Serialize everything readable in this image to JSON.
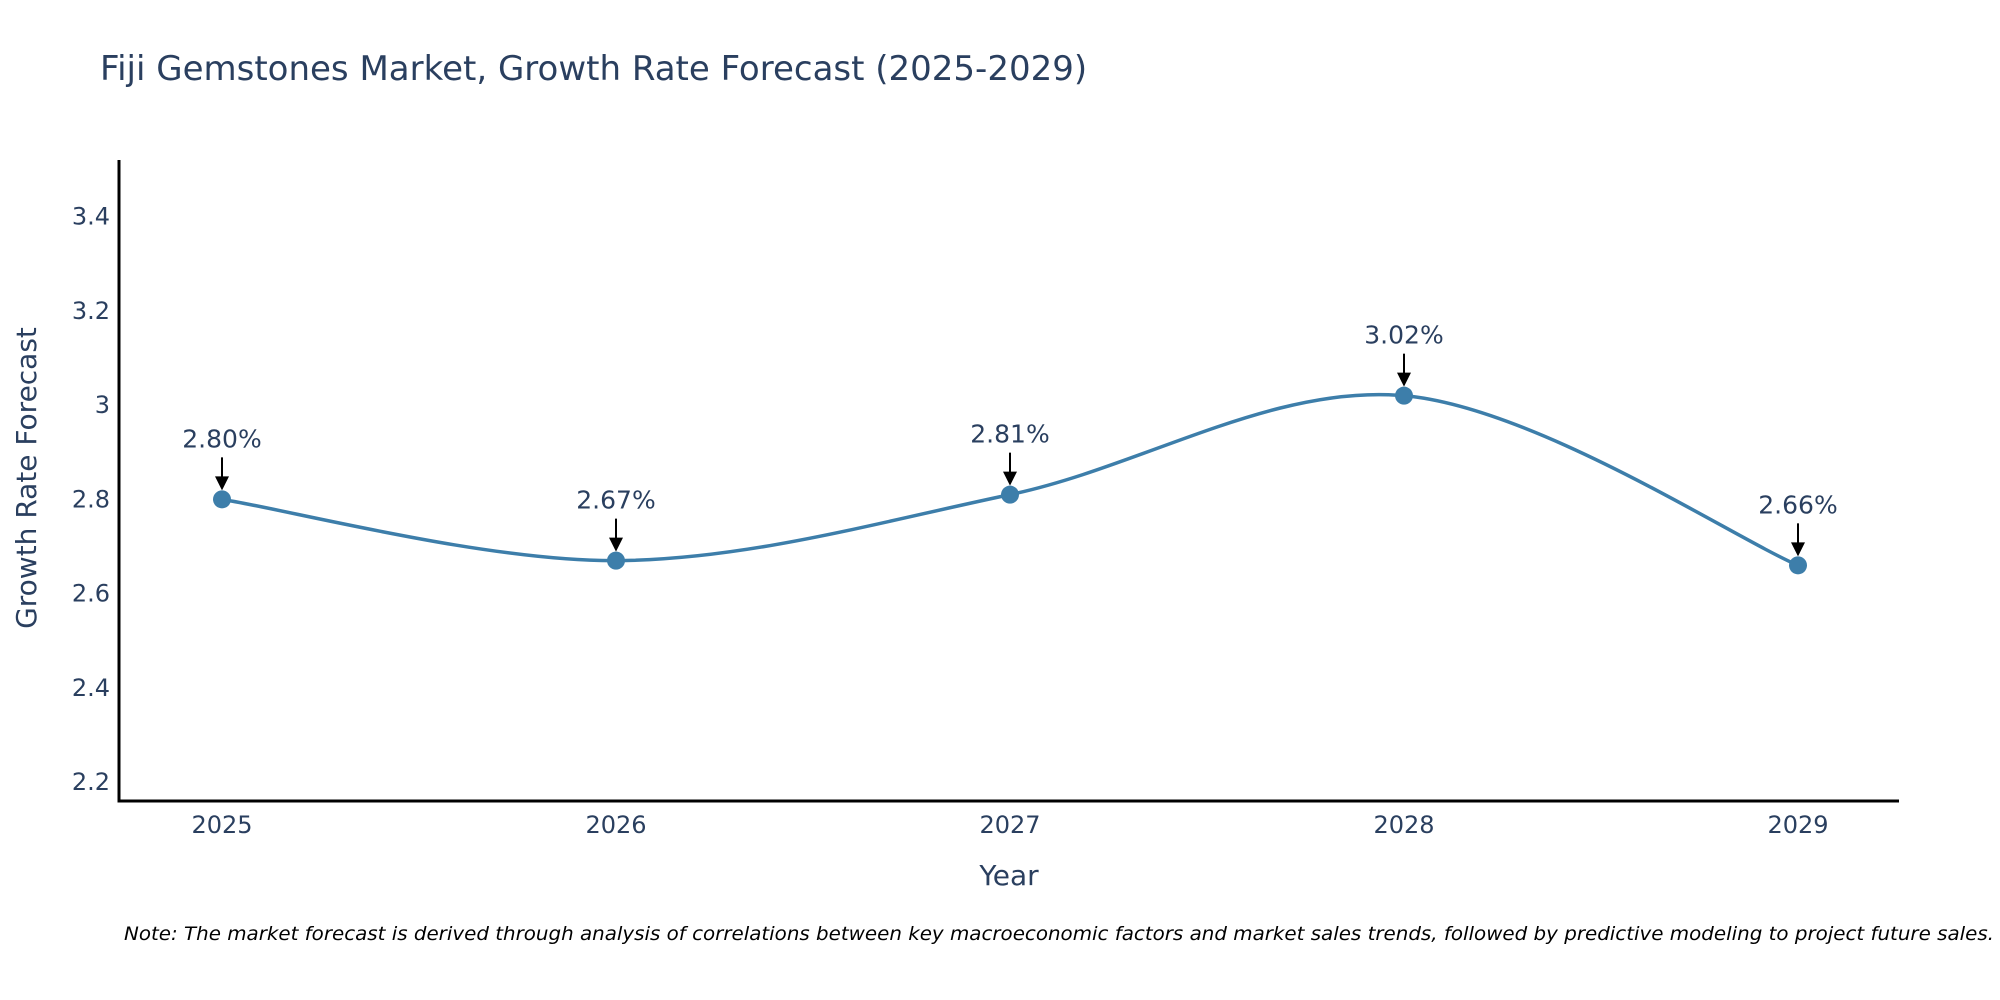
{
  "chart_data": {
    "type": "line",
    "title": "Fiji Gemstones Market, Growth Rate Forecast (2025-2029)",
    "xlabel": "Year",
    "ylabel": "Growth Rate Forecast",
    "categories": [
      "2025",
      "2026",
      "2027",
      "2028",
      "2029"
    ],
    "series": [
      {
        "name": "Growth Rate Forecast",
        "values": [
          2.8,
          2.67,
          2.81,
          3.02,
          2.66
        ],
        "labels": [
          "2.80%",
          "2.67%",
          "2.81%",
          "3.02%",
          "2.66%"
        ],
        "color": "#3d7eaa"
      }
    ],
    "ylim": [
      2.16,
      3.52
    ],
    "yticks": [
      2.2,
      2.4,
      2.6,
      2.8,
      3,
      3.2,
      3.4
    ],
    "ytick_labels": [
      "2.2",
      "2.4",
      "2.6",
      "2.8",
      "3",
      "3.2",
      "3.4"
    ],
    "grid": false,
    "line_shape": "spline"
  },
  "note": "Note: The market forecast is derived through analysis of correlations between key macroeconomic factors and market sales trends, followed by predictive modeling to project future sales."
}
